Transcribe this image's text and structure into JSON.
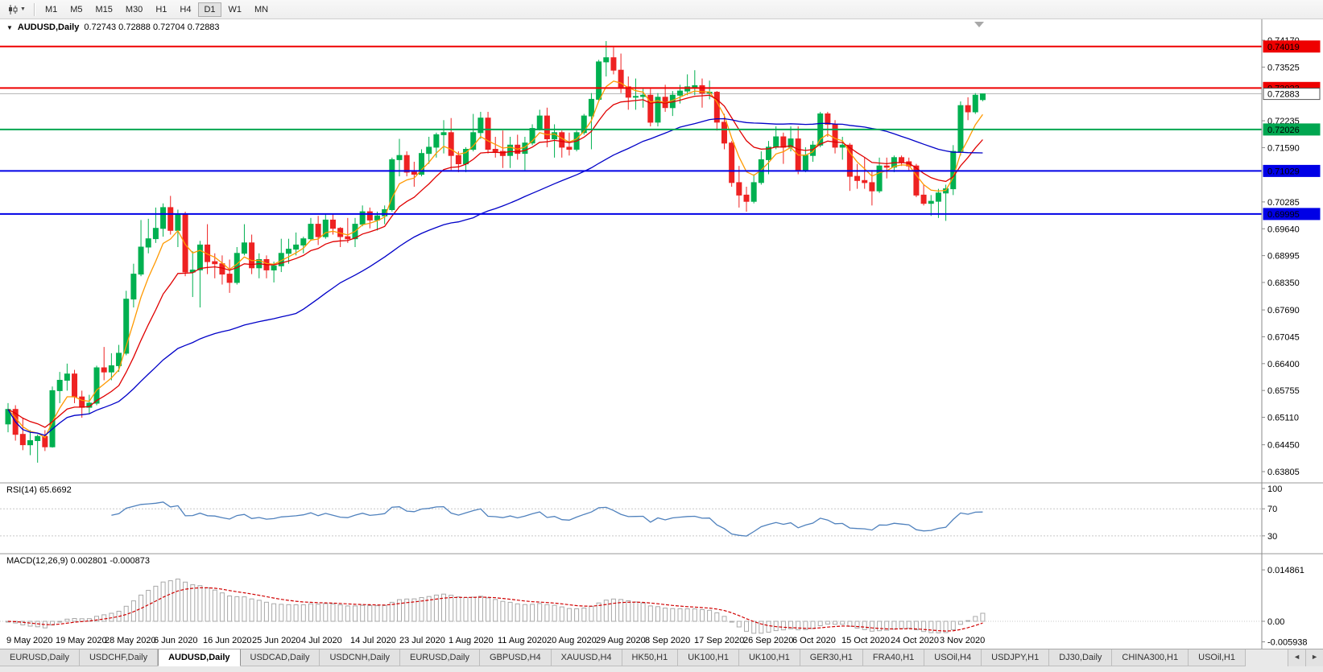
{
  "toolbar": {
    "chart_type_icon": "candlestick-chart-icon",
    "dropdown_caret": "▼",
    "timeframes": [
      "M1",
      "M5",
      "M15",
      "M30",
      "H1",
      "H4",
      "D1",
      "W1",
      "MN"
    ],
    "active_timeframe": "D1"
  },
  "chart": {
    "collapse_icon": "▼",
    "title_symbol": "AUDUSD,Daily",
    "title_ohlc": "0.72743 0.72888 0.72704 0.72883",
    "bull_color": "#00B050",
    "bear_color": "#EE2222",
    "current_price_line_color": "#B8B8B8",
    "price_axis_labels": [
      "0.74170",
      "0.73525",
      "0.72235",
      "0.71590",
      "0.70285",
      "0.69640",
      "0.68995",
      "0.68350",
      "0.67690",
      "0.67045",
      "0.66400",
      "0.65755",
      "0.65110",
      "0.64450",
      "0.63805"
    ],
    "hlines": [
      {
        "value": 0.74019,
        "label": "0.74019",
        "color": "#EE0000"
      },
      {
        "value": 0.73023,
        "label": "0.73023",
        "color": "#EE0000"
      },
      {
        "value": 0.72026,
        "label": "0.72026",
        "color": "#00A650"
      },
      {
        "value": 0.71029,
        "label": "0.71029",
        "color": "#0000E6"
      },
      {
        "value": 0.69995,
        "label": "0.69995",
        "color": "#0000E6"
      }
    ],
    "axis_badges": [
      {
        "value": 0.74019,
        "label": "0.74019",
        "bg": "#EE0000",
        "text": "#ffffff"
      },
      {
        "value": 0.73023,
        "label": "0.73023",
        "bg": "#EE0000",
        "text": "#ffffff"
      },
      {
        "value": 0.72026,
        "label": "0.72026",
        "bg": "#00A650",
        "text": "#ffffff"
      },
      {
        "value": 0.71029,
        "label": "0.71029",
        "bg": "#0000E6",
        "text": "#ffffff"
      },
      {
        "value": 0.69995,
        "label": "0.69995",
        "bg": "#0000E6",
        "text": "#ffffff"
      },
      {
        "value": 0.72883,
        "label": "0.72883",
        "bg": "#ffffff",
        "text": "#000000",
        "border": "#555555"
      }
    ],
    "rsi_label": "RSI(14) 65.6692",
    "rsi_axis_labels": [
      "100",
      "70",
      "30"
    ],
    "macd_label": "MACD(12,26,9) 0.002801 -0.000873",
    "macd_axis_labels": [
      "0.014861",
      "0.00",
      "-0.005938"
    ]
  },
  "chart_data": {
    "type": "candlestick",
    "symbol": "AUDUSD",
    "timeframe": "Daily",
    "title": "AUDUSD,Daily 0.72743 0.72888 0.72704 0.72883",
    "price_range": [
      0.63805,
      0.7417
    ],
    "x_labels": [
      "9 May 2020",
      "19 May 2020",
      "28 May 2020",
      "6 Jun 2020",
      "16 Jun 2020",
      "25 Jun 2020",
      "4 Jul 2020",
      "14 Jul 2020",
      "23 Jul 2020",
      "1 Aug 2020",
      "11 Aug 2020",
      "20 Aug 2020",
      "29 Aug 2020",
      "8 Sep 2020",
      "17 Sep 2020",
      "26 Sep 2020",
      "6 Oct 2020",
      "15 Oct 2020",
      "24 Oct 2020",
      "3 Nov 2020"
    ],
    "candles_ohlc": [
      [
        0.6495,
        0.6545,
        0.6475,
        0.653
      ],
      [
        0.653,
        0.654,
        0.6455,
        0.647
      ],
      [
        0.647,
        0.651,
        0.6432,
        0.6445
      ],
      [
        0.6445,
        0.648,
        0.642,
        0.6455
      ],
      [
        0.6455,
        0.647,
        0.6402,
        0.6465
      ],
      [
        0.6465,
        0.648,
        0.643,
        0.644
      ],
      [
        0.644,
        0.6585,
        0.6438,
        0.6575
      ],
      [
        0.6575,
        0.662,
        0.6545,
        0.66
      ],
      [
        0.66,
        0.664,
        0.6575,
        0.6615
      ],
      [
        0.6615,
        0.6625,
        0.6545,
        0.656
      ],
      [
        0.656,
        0.6575,
        0.651,
        0.6535
      ],
      [
        0.6535,
        0.6565,
        0.652,
        0.6545
      ],
      [
        0.6545,
        0.6635,
        0.654,
        0.663
      ],
      [
        0.663,
        0.668,
        0.66,
        0.662
      ],
      [
        0.662,
        0.6665,
        0.66,
        0.6635
      ],
      [
        0.6635,
        0.6685,
        0.662,
        0.6665
      ],
      [
        0.6665,
        0.6815,
        0.666,
        0.6795
      ],
      [
        0.6795,
        0.688,
        0.6775,
        0.6855
      ],
      [
        0.6855,
        0.6985,
        0.685,
        0.692
      ],
      [
        0.692,
        0.6988,
        0.6905,
        0.694
      ],
      [
        0.694,
        0.7015,
        0.693,
        0.6965
      ],
      [
        0.6965,
        0.7025,
        0.6945,
        0.7015
      ],
      [
        0.7015,
        0.7043,
        0.695,
        0.696
      ],
      [
        0.696,
        0.701,
        0.692,
        0.7
      ],
      [
        0.7,
        0.7005,
        0.685,
        0.686
      ],
      [
        0.686,
        0.691,
        0.68,
        0.6865
      ],
      [
        0.6865,
        0.6935,
        0.6775,
        0.6925
      ],
      [
        0.6925,
        0.6975,
        0.6855,
        0.6885
      ],
      [
        0.6885,
        0.6905,
        0.6845,
        0.688
      ],
      [
        0.688,
        0.69,
        0.683,
        0.6855
      ],
      [
        0.6855,
        0.689,
        0.681,
        0.6835
      ],
      [
        0.6835,
        0.692,
        0.683,
        0.6905
      ],
      [
        0.6905,
        0.6975,
        0.69,
        0.693
      ],
      [
        0.693,
        0.695,
        0.6855,
        0.687
      ],
      [
        0.687,
        0.6905,
        0.6845,
        0.689
      ],
      [
        0.689,
        0.69,
        0.6845,
        0.6865
      ],
      [
        0.6865,
        0.6885,
        0.6835,
        0.6875
      ],
      [
        0.6875,
        0.694,
        0.686,
        0.6905
      ],
      [
        0.6905,
        0.694,
        0.688,
        0.6915
      ],
      [
        0.6915,
        0.6955,
        0.69,
        0.6925
      ],
      [
        0.6925,
        0.6945,
        0.6905,
        0.694
      ],
      [
        0.694,
        0.699,
        0.6935,
        0.6975
      ],
      [
        0.6975,
        0.6995,
        0.6925,
        0.6945
      ],
      [
        0.6945,
        0.7,
        0.694,
        0.6985
      ],
      [
        0.6985,
        0.7,
        0.695,
        0.6965
      ],
      [
        0.6965,
        0.6968,
        0.692,
        0.6945
      ],
      [
        0.6945,
        0.699,
        0.693,
        0.694
      ],
      [
        0.694,
        0.699,
        0.692,
        0.6975
      ],
      [
        0.6975,
        0.702,
        0.697,
        0.7005
      ],
      [
        0.7005,
        0.7015,
        0.6965,
        0.6985
      ],
      [
        0.6985,
        0.7005,
        0.696,
        0.6995
      ],
      [
        0.6995,
        0.702,
        0.6975,
        0.701
      ],
      [
        0.701,
        0.7135,
        0.7005,
        0.713
      ],
      [
        0.713,
        0.718,
        0.709,
        0.714
      ],
      [
        0.714,
        0.715,
        0.709,
        0.71
      ],
      [
        0.71,
        0.7125,
        0.7065,
        0.7095
      ],
      [
        0.7095,
        0.7155,
        0.709,
        0.7145
      ],
      [
        0.7145,
        0.7185,
        0.712,
        0.716
      ],
      [
        0.716,
        0.7195,
        0.7135,
        0.719
      ],
      [
        0.719,
        0.7225,
        0.7145,
        0.7195
      ],
      [
        0.7195,
        0.723,
        0.7105,
        0.714
      ],
      [
        0.714,
        0.715,
        0.71,
        0.712
      ],
      [
        0.712,
        0.716,
        0.71,
        0.7155
      ],
      [
        0.7155,
        0.724,
        0.715,
        0.7195
      ],
      [
        0.7195,
        0.7245,
        0.718,
        0.723
      ],
      [
        0.723,
        0.7245,
        0.7145,
        0.7155
      ],
      [
        0.7155,
        0.7185,
        0.7135,
        0.715
      ],
      [
        0.715,
        0.72,
        0.711,
        0.714
      ],
      [
        0.714,
        0.7185,
        0.711,
        0.7165
      ],
      [
        0.7165,
        0.719,
        0.713,
        0.7145
      ],
      [
        0.7145,
        0.7185,
        0.7105,
        0.717
      ],
      [
        0.717,
        0.7215,
        0.7165,
        0.7205
      ],
      [
        0.7205,
        0.725,
        0.72,
        0.7235
      ],
      [
        0.7235,
        0.7255,
        0.716,
        0.718
      ],
      [
        0.718,
        0.7215,
        0.7135,
        0.7195
      ],
      [
        0.7195,
        0.72,
        0.7135,
        0.716
      ],
      [
        0.716,
        0.7195,
        0.714,
        0.7155
      ],
      [
        0.7155,
        0.72,
        0.715,
        0.7195
      ],
      [
        0.7195,
        0.724,
        0.719,
        0.7235
      ],
      [
        0.7235,
        0.729,
        0.7155,
        0.7275
      ],
      [
        0.7275,
        0.737,
        0.727,
        0.7365
      ],
      [
        0.7365,
        0.7415,
        0.733,
        0.7375
      ],
      [
        0.7375,
        0.74,
        0.7335,
        0.7345
      ],
      [
        0.7345,
        0.7385,
        0.729,
        0.7305
      ],
      [
        0.7305,
        0.733,
        0.725,
        0.728
      ],
      [
        0.728,
        0.7325,
        0.725,
        0.7282
      ],
      [
        0.7282,
        0.73,
        0.7255,
        0.7285
      ],
      [
        0.7285,
        0.73,
        0.721,
        0.722
      ],
      [
        0.722,
        0.729,
        0.721,
        0.728
      ],
      [
        0.728,
        0.731,
        0.7245,
        0.7255
      ],
      [
        0.7255,
        0.7295,
        0.7235,
        0.7285
      ],
      [
        0.7285,
        0.731,
        0.7265,
        0.7295
      ],
      [
        0.7295,
        0.7335,
        0.7285,
        0.7305
      ],
      [
        0.7305,
        0.7345,
        0.7285,
        0.7308
      ],
      [
        0.7308,
        0.7325,
        0.7255,
        0.729
      ],
      [
        0.729,
        0.732,
        0.7275,
        0.7292
      ],
      [
        0.7292,
        0.7295,
        0.72,
        0.722
      ],
      [
        0.722,
        0.724,
        0.7155,
        0.717
      ],
      [
        0.717,
        0.7175,
        0.7065,
        0.7075
      ],
      [
        0.7075,
        0.7115,
        0.7015,
        0.7045
      ],
      [
        0.7045,
        0.7065,
        0.7005,
        0.703
      ],
      [
        0.703,
        0.7095,
        0.7025,
        0.7075
      ],
      [
        0.7075,
        0.715,
        0.707,
        0.713
      ],
      [
        0.713,
        0.7175,
        0.7095,
        0.716
      ],
      [
        0.716,
        0.721,
        0.7155,
        0.7185
      ],
      [
        0.7185,
        0.7195,
        0.712,
        0.716
      ],
      [
        0.716,
        0.721,
        0.715,
        0.718
      ],
      [
        0.718,
        0.721,
        0.7095,
        0.7105
      ],
      [
        0.7105,
        0.716,
        0.71,
        0.714
      ],
      [
        0.714,
        0.7175,
        0.7125,
        0.7165
      ],
      [
        0.7165,
        0.7245,
        0.716,
        0.724
      ],
      [
        0.724,
        0.7245,
        0.7185,
        0.7215
      ],
      [
        0.7215,
        0.7225,
        0.7145,
        0.716
      ],
      [
        0.716,
        0.7185,
        0.713,
        0.7165
      ],
      [
        0.7165,
        0.717,
        0.7055,
        0.709
      ],
      [
        0.709,
        0.712,
        0.706,
        0.708
      ],
      [
        0.708,
        0.7135,
        0.706,
        0.7075
      ],
      [
        0.7075,
        0.7105,
        0.702,
        0.7055
      ],
      [
        0.7055,
        0.7135,
        0.705,
        0.7115
      ],
      [
        0.7115,
        0.7135,
        0.7085,
        0.7112
      ],
      [
        0.7112,
        0.714,
        0.71,
        0.7135
      ],
      [
        0.7135,
        0.714,
        0.7115,
        0.7125
      ],
      [
        0.7125,
        0.7135,
        0.7105,
        0.7115
      ],
      [
        0.7115,
        0.712,
        0.704,
        0.7045
      ],
      [
        0.7045,
        0.707,
        0.702,
        0.7025
      ],
      [
        0.7025,
        0.7045,
        0.6995,
        0.703
      ],
      [
        0.703,
        0.706,
        0.699,
        0.705
      ],
      [
        0.705,
        0.707,
        0.6983,
        0.706
      ],
      [
        0.706,
        0.7165,
        0.7045,
        0.715
      ],
      [
        0.715,
        0.727,
        0.714,
        0.726
      ],
      [
        0.726,
        0.728,
        0.7225,
        0.7245
      ],
      [
        0.7245,
        0.729,
        0.724,
        0.7285
      ],
      [
        0.72743,
        0.72888,
        0.72704,
        0.72883
      ]
    ],
    "overlays": [
      {
        "name": "fast-ma",
        "type": "ema",
        "period": 5,
        "color": "#FF9900"
      },
      {
        "name": "mid-ma",
        "type": "ema",
        "period": 12,
        "color": "#E00000"
      },
      {
        "name": "slow-ma",
        "type": "sma",
        "period": 40,
        "color": "#0000C8"
      }
    ],
    "indicators": [
      {
        "name": "RSI",
        "period": 14,
        "value": 65.6692,
        "levels": [
          70,
          30
        ],
        "color": "#4F81BD"
      },
      {
        "name": "MACD",
        "fast": 12,
        "slow": 26,
        "signal": 9,
        "macd_value": 0.002801,
        "signal_value": -0.000873,
        "axis_max": 0.014861,
        "axis_min": -0.005938,
        "histogram_color": "#A8A8A8",
        "signal_color": "#D00000"
      }
    ]
  },
  "tabs": {
    "items": [
      "EURUSD,Daily",
      "USDCHF,Daily",
      "AUDUSD,Daily",
      "USDCAD,Daily",
      "USDCNH,Daily",
      "EURUSD,Daily",
      "GBPUSD,H4",
      "XAUUSD,H4",
      "HK50,H1",
      "UK100,H1",
      "UK100,H1",
      "GER30,H1",
      "FRA40,H1",
      "USOil,H4",
      "USDJPY,H1",
      "DJ30,Daily",
      "CHINA300,H1",
      "USOil,H1"
    ],
    "active_index": 2,
    "scroll_left": "◄",
    "scroll_right": "►"
  }
}
